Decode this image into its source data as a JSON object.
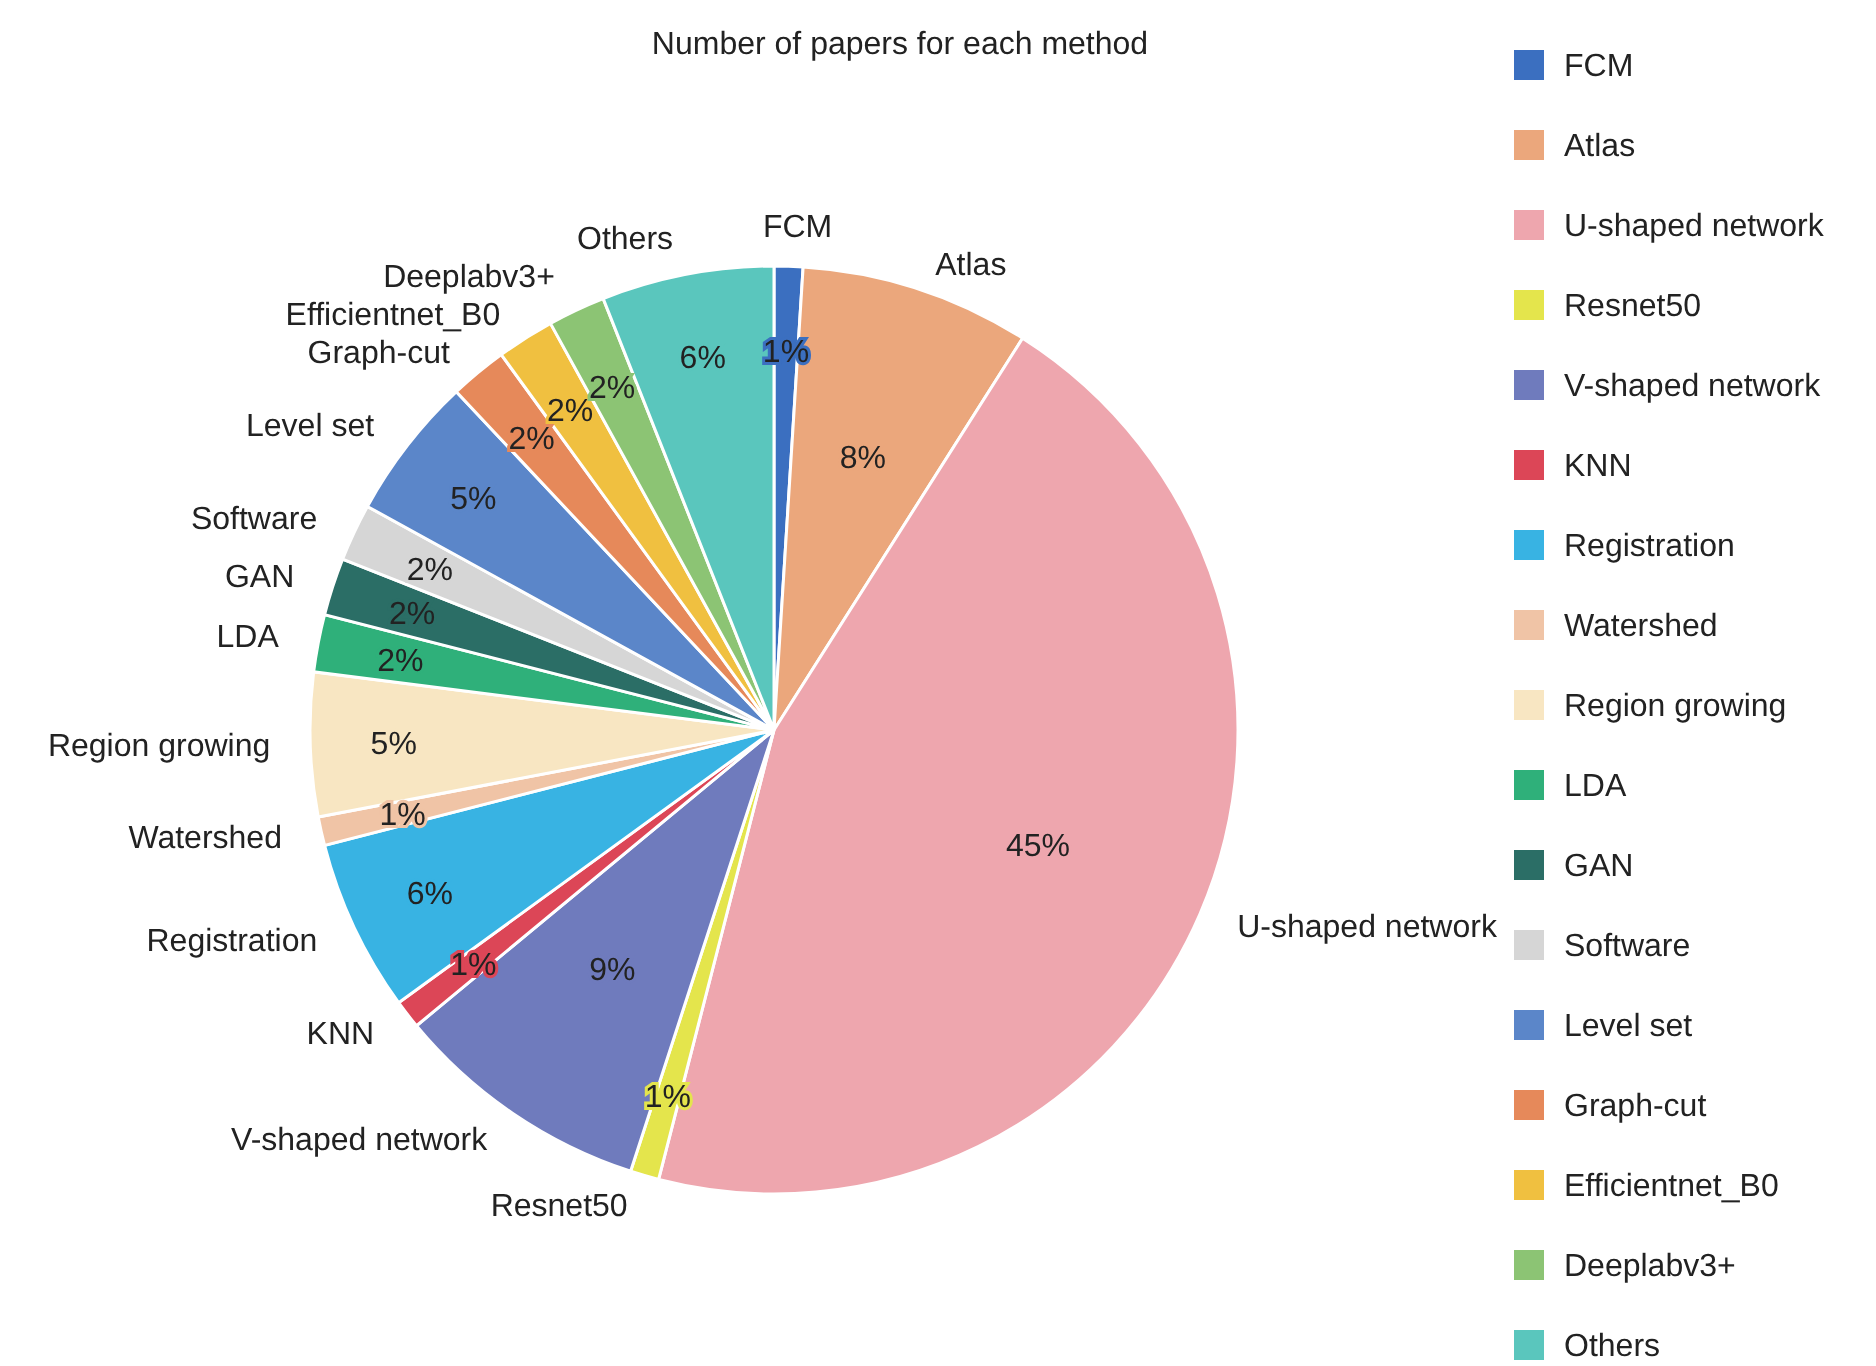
{
  "chart_data": {
    "type": "pie",
    "title": "Number of papers for each method",
    "categories": [
      "FCM",
      "Atlas",
      "U-shaped network",
      "Resnet50",
      "V-shaped network",
      "KNN",
      "Registration",
      "Watershed",
      "Region growing",
      "LDA",
      "GAN",
      "Software",
      "Level set",
      "Graph-cut",
      "Efficientnet_B0",
      "Deeplabv3+",
      "Others"
    ],
    "values": [
      1,
      8,
      45,
      1,
      9,
      1,
      6,
      1,
      5,
      2,
      2,
      2,
      5,
      2,
      2,
      2,
      6
    ],
    "colors": [
      "#3b6fc0",
      "#eba77c",
      "#eea6ae",
      "#e4e54c",
      "#6f7bbd",
      "#dc4657",
      "#38b3e3",
      "#f0c4a6",
      "#f8e6c2",
      "#2fb07a",
      "#2b6e66",
      "#d6d6d6",
      "#5b86c9",
      "#e6895a",
      "#f0c040",
      "#8cc474",
      "#5ac6bd"
    ],
    "value_labels": [
      "1%",
      "8%",
      "45%",
      "1%",
      "9%",
      "1%",
      "6%",
      "1%",
      "5%",
      "2%",
      "2%",
      "2%",
      "5%",
      "2%",
      "2%",
      "2%",
      "6%"
    ],
    "legend": "right"
  }
}
